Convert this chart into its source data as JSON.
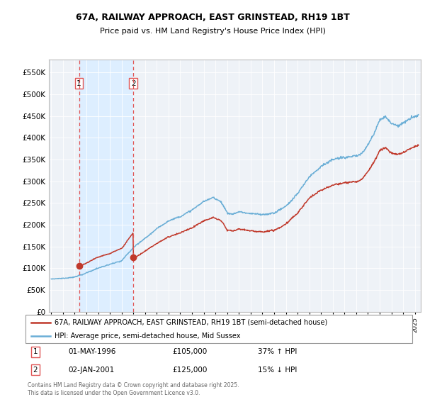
{
  "title1": "67A, RAILWAY APPROACH, EAST GRINSTEAD, RH19 1BT",
  "title2": "Price paid vs. HM Land Registry's House Price Index (HPI)",
  "legend_line1": "67A, RAILWAY APPROACH, EAST GRINSTEAD, RH19 1BT (semi-detached house)",
  "legend_line2": "HPI: Average price, semi-detached house, Mid Sussex",
  "sale1_label": "1",
  "sale1_date": "01-MAY-1996",
  "sale1_price": "£105,000",
  "sale1_hpi": "37% ↑ HPI",
  "sale2_label": "2",
  "sale2_date": "02-JAN-2001",
  "sale2_price": "£125,000",
  "sale2_hpi": "15% ↓ HPI",
  "footnote": "Contains HM Land Registry data © Crown copyright and database right 2025.\nThis data is licensed under the Open Government Licence v3.0.",
  "hpi_line_color": "#6aaed6",
  "hpi_fill_color": "#ddeeff",
  "price_color": "#c0392b",
  "dashed_line_color": "#e05555",
  "marker_color": "#c0392b",
  "background_color": "#eef2f7",
  "sale1_x": 1996.37,
  "sale1_y": 105000,
  "sale2_x": 2001.01,
  "sale2_y": 125000,
  "ylim": [
    0,
    580000
  ],
  "xlim_start": 1993.8,
  "xlim_end": 2025.5,
  "yticks": [
    0,
    50000,
    100000,
    150000,
    200000,
    250000,
    300000,
    350000,
    400000,
    450000,
    500000,
    550000
  ]
}
